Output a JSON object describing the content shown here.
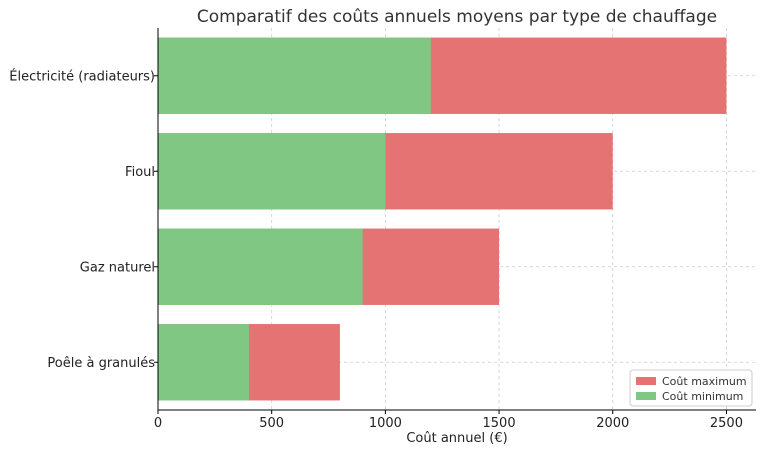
{
  "chart_data": {
    "type": "bar",
    "orientation": "horizontal",
    "stacked": "overlay",
    "title": "Comparatif des coûts annuels moyens par type de chauffage",
    "xlabel": "Coût annuel (€)",
    "ylabel": "",
    "categories": [
      "Électricité (radiateurs)",
      "Fioul",
      "Gaz naturel",
      "Poêle à granulés"
    ],
    "series": [
      {
        "name": "Coût maximum",
        "values": [
          2500,
          2000,
          1500,
          800
        ],
        "color": "#e57373"
      },
      {
        "name": "Coût minimum",
        "values": [
          1200,
          1000,
          900,
          400
        ],
        "color": "#81c784"
      }
    ],
    "xlim": [
      0,
      2630
    ],
    "xticks": [
      0,
      500,
      1000,
      1500,
      2000,
      2500
    ],
    "grid": true,
    "legend_position": "bottom-right"
  }
}
